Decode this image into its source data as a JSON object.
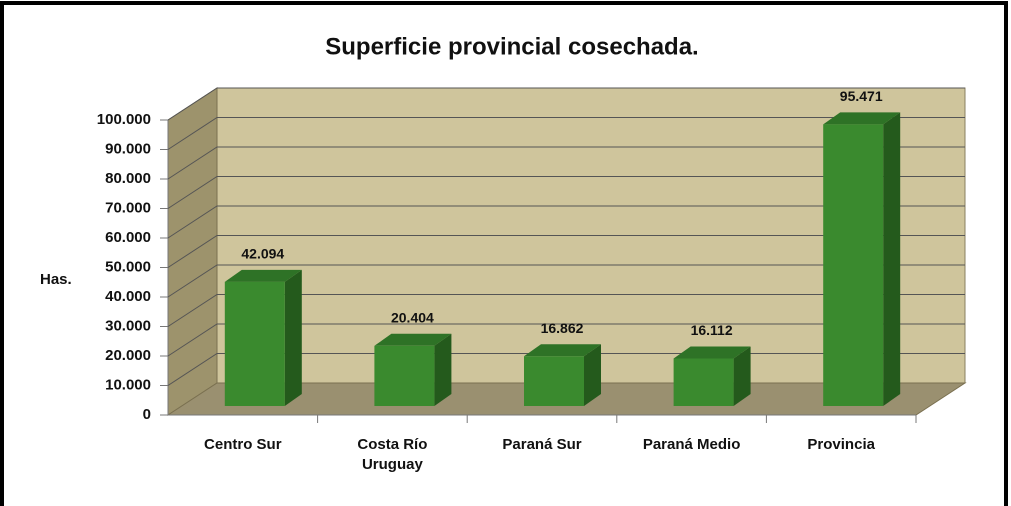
{
  "chart_data": {
    "type": "bar",
    "title": "Superficie provincial cosechada.",
    "y_label": "Has.",
    "categories": [
      "Centro Sur",
      "Costa Río Uruguay",
      "Paraná Sur",
      "Paraná Medio",
      "Provincia"
    ],
    "values": [
      42094,
      20404,
      16862,
      16112,
      95471
    ],
    "value_labels": [
      "42.094",
      "20.404",
      "16.862",
      "16.112",
      "95.471"
    ],
    "color": "#3a8a2e",
    "ylim": [
      0,
      100000
    ],
    "yticks": [
      {
        "value": 0,
        "label": "0"
      },
      {
        "value": 10000,
        "label": "10.000"
      },
      {
        "value": 20000,
        "label": "20.000"
      },
      {
        "value": 30000,
        "label": "30.000"
      },
      {
        "value": 40000,
        "label": "40.000"
      },
      {
        "value": 50000,
        "label": "50.000"
      },
      {
        "value": 60000,
        "label": "60.000"
      },
      {
        "value": 70000,
        "label": "70.000"
      },
      {
        "value": 80000,
        "label": "80.000"
      },
      {
        "value": 90000,
        "label": "90.000"
      },
      {
        "value": 100000,
        "label": "100.000"
      }
    ],
    "grid": true
  }
}
